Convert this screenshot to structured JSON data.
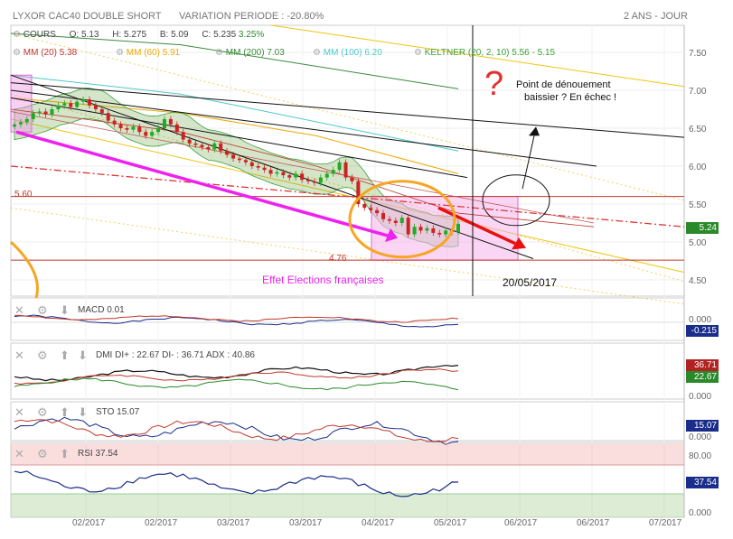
{
  "header": {
    "title": "LYXOR CAC40 DOUBLE SHORT",
    "variation": "VARIATION PERIODE : -20.80%",
    "period": "2 ANS - JOUR"
  },
  "legend": {
    "cours": "COURS",
    "o": "O: 5.13",
    "h": "H: 5.275",
    "b": "B: 5.09",
    "c": "C: 5.235",
    "c_change": "3.25%",
    "mm20": "MM (20)",
    "mm20_val": "5.38",
    "mm60": "MM (60)",
    "mm60_val": "5.91",
    "mm200": "MM (200)",
    "mm200_val": "7.03",
    "mm100": "MM (100)",
    "mm100_val": "6.20",
    "keltner": "KELTNER (20, 2, 10)",
    "keltner_val": "5.56 - 5.15"
  },
  "annotations": {
    "question": "?",
    "point_text_1": "Point de dénouement",
    "point_text_2": "baissier ? En échec !",
    "level_560": "5.60",
    "level_476": "4.76",
    "effet": "Effet Elections françaises",
    "date": "20/05/2017"
  },
  "indicators": {
    "macd": {
      "label": "MACD",
      "value": "0.01",
      "badge": "-0.215",
      "axis_top": "0.000"
    },
    "dmi": {
      "label": "DMI",
      "value": "DI+ : 22.67 DI- : 36.71 ADX : 40.86",
      "badge_red": "36.71",
      "badge_green": "22.67",
      "axis_bottom": "0.000"
    },
    "sto": {
      "label": "STO",
      "value": "15.07",
      "badge": "15.07",
      "axis_bottom": "0.000"
    },
    "rsi": {
      "label": "RSI",
      "value": "37.54",
      "badge": "37.54",
      "axis_top": "80.00",
      "axis_bottom": "0.000"
    }
  },
  "colors": {
    "mm20": "#c0392b",
    "mm60": "#f0a800",
    "mm200": "#3a8a3a",
    "mm100": "#4ec8c8",
    "keltner": "#3aa13a",
    "magenta": "#ee22ee",
    "pink_zone": "#f7c6f0",
    "orange": "#f5a623",
    "up": "#22aa22",
    "down": "#cc2222",
    "price_badge": "#2a8a2a",
    "blue_badge": "#1a2d8a"
  },
  "chart_data": {
    "type": "candlestick",
    "title": "LYXOR CAC40 DOUBLE SHORT",
    "y_range": [
      4.3,
      7.9
    ],
    "y_ticks": [
      4.5,
      5.0,
      5.5,
      6.0,
      6.5,
      7.0,
      7.5
    ],
    "x_ticks": [
      "02/2017",
      "02/2017",
      "03/2017",
      "03/2017",
      "04/2017",
      "05/2017",
      "06/2017",
      "06/2017",
      "07/2017"
    ],
    "last_price": 5.24,
    "levels": [
      5.6,
      4.76
    ],
    "series": [
      {
        "name": "COURS",
        "close": [
          6.55,
          6.58,
          6.62,
          6.7,
          6.72,
          6.68,
          6.75,
          6.8,
          6.83,
          6.78,
          6.85,
          6.88,
          6.8,
          6.75,
          6.7,
          6.6,
          6.55,
          6.5,
          6.48,
          6.52,
          6.45,
          6.4,
          6.45,
          6.5,
          6.62,
          6.55,
          6.45,
          6.35,
          6.3,
          6.28,
          6.25,
          6.22,
          6.3,
          6.2,
          6.15,
          6.1,
          6.08,
          6.05,
          6.0,
          5.98,
          5.95,
          5.9,
          5.92,
          5.88,
          5.85,
          5.9,
          5.82,
          5.8,
          5.78,
          5.85,
          5.9,
          5.95,
          6.05,
          5.85,
          5.8,
          5.5,
          5.45,
          5.42,
          5.38,
          5.3,
          5.28,
          5.25,
          5.32,
          5.1,
          5.2,
          5.15,
          5.18,
          5.12,
          5.1,
          5.15,
          5.13,
          5.24
        ]
      },
      {
        "name": "MM (20)",
        "value": 5.38
      },
      {
        "name": "MM (60)",
        "value": 5.91
      },
      {
        "name": "MM (200)",
        "value": 7.03
      },
      {
        "name": "MM (100)",
        "value": 6.2
      },
      {
        "name": "KELTNER (20, 2, 10)",
        "value": "5.56 - 5.15"
      }
    ],
    "indicators": {
      "macd_range": [
        -0.25,
        0.05
      ],
      "dmi_range": [
        0,
        60
      ],
      "sto_range": [
        0,
        100
      ],
      "rsi_range": [
        0,
        100
      ],
      "rsi_levels": [
        80,
        20
      ]
    }
  }
}
